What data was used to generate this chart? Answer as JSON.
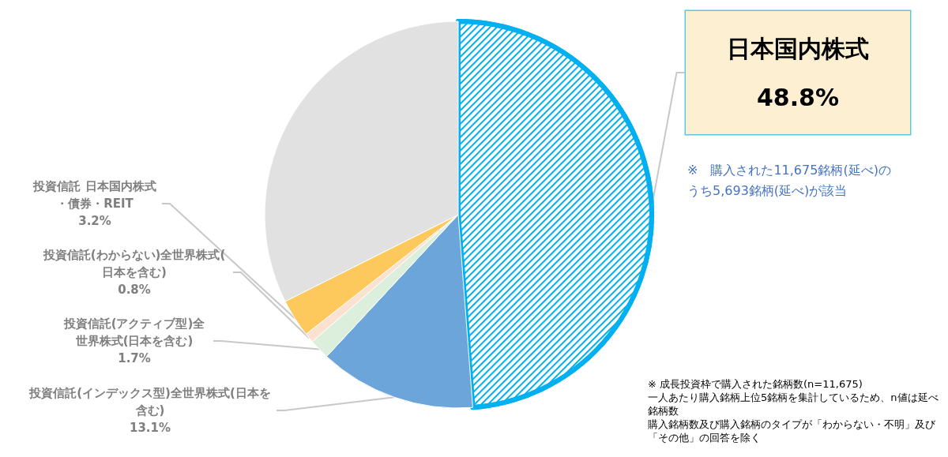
{
  "chart_data": {
    "type": "pie",
    "categories": [
      "日本国内株式",
      "投資信託(インデックス型)全世界株式(日本を含む)",
      "投資信託(アクティブ型)全世界株式(日本を含む)",
      "投資信託(わからない)全世界株式(日本を含む)",
      "投資信託 日本国内株式・債券・REIT",
      null
    ],
    "values": [
      48.8,
      13.1,
      1.7,
      0.8,
      3.2,
      32.4
    ],
    "colors": [
      "#00b0f0",
      "#6ca5da",
      "#dcefdc",
      "#fbe1d0",
      "#fdc95c",
      "#e1e1e1"
    ],
    "value_labels": [
      "48.8%",
      "13.1%",
      "1.7%",
      "0.8%",
      "3.2%",
      null
    ],
    "annotations": [
      "※　購入された11,675銘柄(延べ)のうち5,693銘柄(延べ)が該当",
      "※ 成長投資枠で購入された銘柄数(n=11,675)",
      "一人あたり購入銘柄上位5銘柄を集計しているため、n値は延べ銘柄数",
      "購入銘柄数及び購入銘柄のタイプが「わからない・不明」及び「その他」の回答を除く"
    ]
  }
}
